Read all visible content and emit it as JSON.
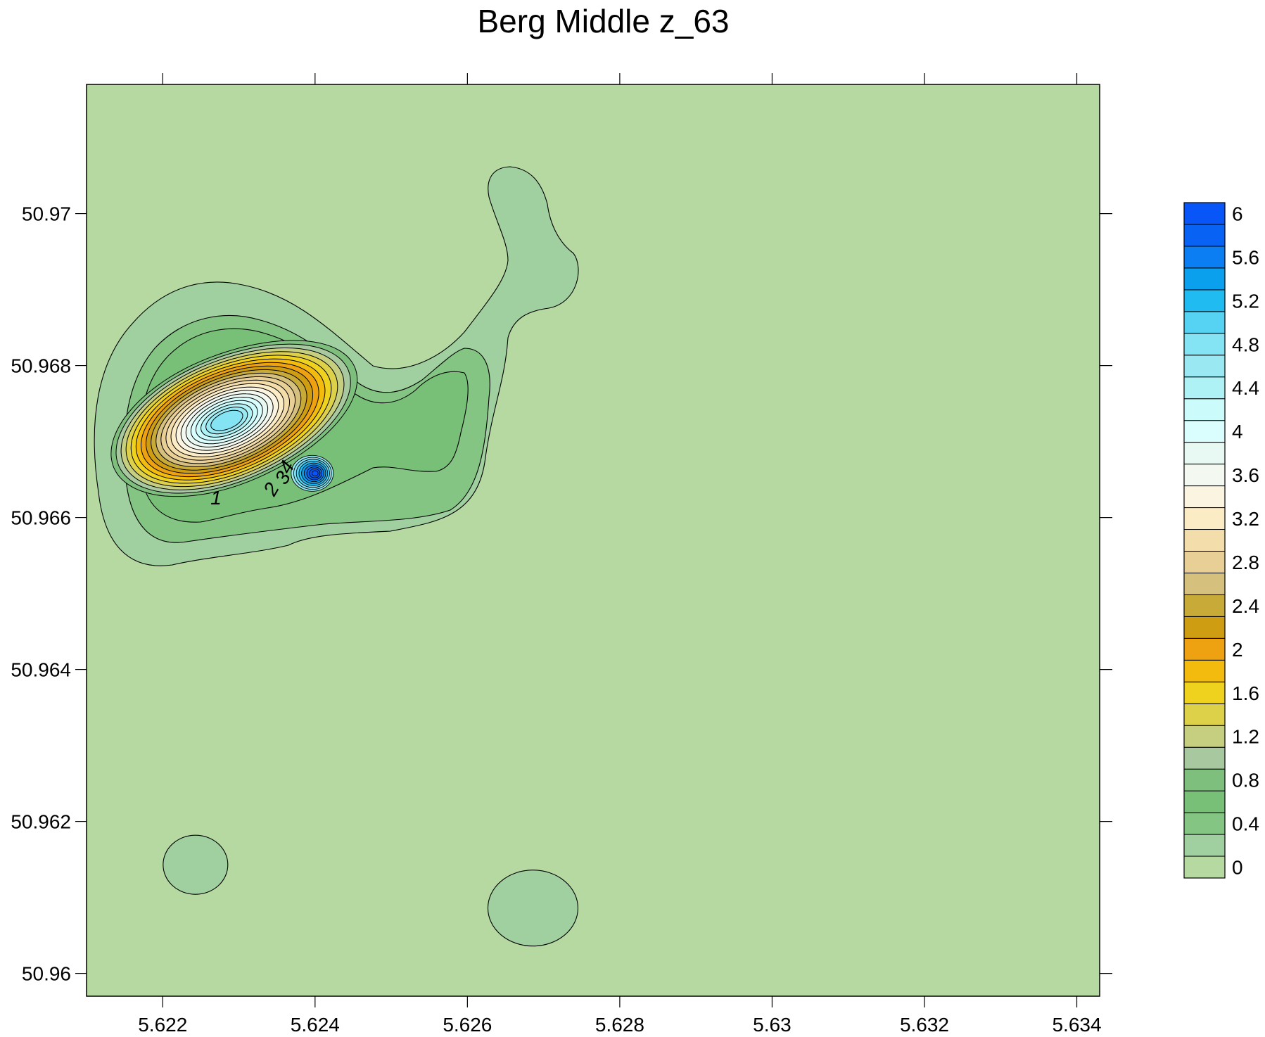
{
  "chart_data": {
    "type": "contour",
    "title": "Berg Middle z_63",
    "xlabel": "",
    "ylabel": "",
    "xlim": [
      5.621,
      5.6343
    ],
    "ylim": [
      50.9597,
      50.9717
    ],
    "x_ticks": [
      5.622,
      5.624,
      5.626,
      5.628,
      5.63,
      5.632,
      5.634
    ],
    "x_tick_labels": [
      "5.622",
      "5.624",
      "5.626",
      "5.628",
      "5.63",
      "5.632",
      "5.634"
    ],
    "y_ticks": [
      50.96,
      50.962,
      50.964,
      50.966,
      50.968,
      50.97
    ],
    "y_tick_labels": [
      "50.96",
      "50.962",
      "50.964",
      "50.966",
      "50.968",
      "50.97"
    ],
    "contour_interval": 0.2,
    "contour_line_labels": [
      {
        "value": "1",
        "x": 5.6227,
        "y": 50.96617
      },
      {
        "value": "2",
        "x": 5.6235,
        "y": 50.96633
      },
      {
        "value": "3",
        "x": 5.62365,
        "y": 50.96648
      },
      {
        "value": "4",
        "x": 5.6237,
        "y": 50.96662
      }
    ],
    "peaks": [
      {
        "x": 5.6228,
        "y": 50.9673,
        "value": 4.4
      },
      {
        "x": 5.624,
        "y": 50.9666,
        "value": 6.2
      }
    ],
    "background_value": 0,
    "colorbar": {
      "min": 0,
      "max": 6.2,
      "step": 0.2,
      "tick_values": [
        0,
        0.4,
        0.8,
        1.2,
        1.6,
        2,
        2.4,
        2.8,
        3.2,
        3.6,
        4,
        4.4,
        4.8,
        5.2,
        5.6,
        6
      ],
      "tick_labels": [
        "0",
        "0.4",
        "0.8",
        "1.2",
        "1.6",
        "2",
        "2.4",
        "2.8",
        "3.2",
        "3.6",
        "4",
        "4.4",
        "4.8",
        "5.2",
        "5.6",
        "6"
      ],
      "colors": [
        "#b6d9a1",
        "#a0d0a0",
        "#84c584",
        "#78c078",
        "#7ebf7e",
        "#a8c9a0",
        "#c6cf80",
        "#ded14a",
        "#eed21e",
        "#f3bb0d",
        "#eea211",
        "#cf9d12",
        "#c8aa39",
        "#d6c07d",
        "#e8cf96",
        "#f3ddaa",
        "#fbecc6",
        "#fbf4e0",
        "#f3f9f0",
        "#e8f9f4",
        "#dafdfd",
        "#ccfbfb",
        "#aff2f6",
        "#9ae9f2",
        "#84e4f4",
        "#56d2f2",
        "#20bbf0",
        "#0aa0ee",
        "#0a7ef2",
        "#0862f4",
        "#0856f8"
      ]
    },
    "colors": {
      "background": "#b6d9a1",
      "contour_line": "#000000",
      "frame": "#000000"
    }
  }
}
